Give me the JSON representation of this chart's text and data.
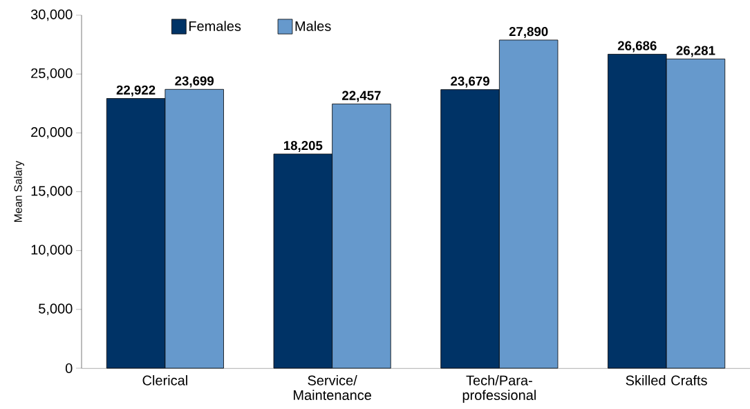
{
  "chart_data": {
    "type": "bar",
    "ylabel": "Mean Salary",
    "categories": [
      "Clerical",
      "Service/ Maintenance",
      "Tech/Para-professional",
      "Skilled Crafts"
    ],
    "series": [
      {
        "name": "Females",
        "color": "#003366",
        "values": [
          22922,
          18205,
          23679,
          26686
        ],
        "value_labels": [
          "22,922",
          "18,205",
          "23,679",
          "26,686"
        ]
      },
      {
        "name": "Males",
        "color": "#6699cc",
        "values": [
          23699,
          22457,
          27890,
          26281
        ],
        "value_labels": [
          "23,699",
          "22,457",
          "27,890",
          "26,281"
        ]
      }
    ],
    "ylim": [
      0,
      30000
    ],
    "yticks": [
      0,
      {
        "value": 5000,
        "label": "5,000"
      },
      {
        "value": 10000,
        "label": "10,000"
      },
      {
        "value": 15000,
        "label": "15,000"
      },
      {
        "value": 20000,
        "label": "20,000"
      },
      {
        "value": 25000,
        "label": "25,000"
      },
      {
        "value": 30000,
        "label": "30,000"
      }
    ],
    "legend": "top left",
    "grid": false
  }
}
